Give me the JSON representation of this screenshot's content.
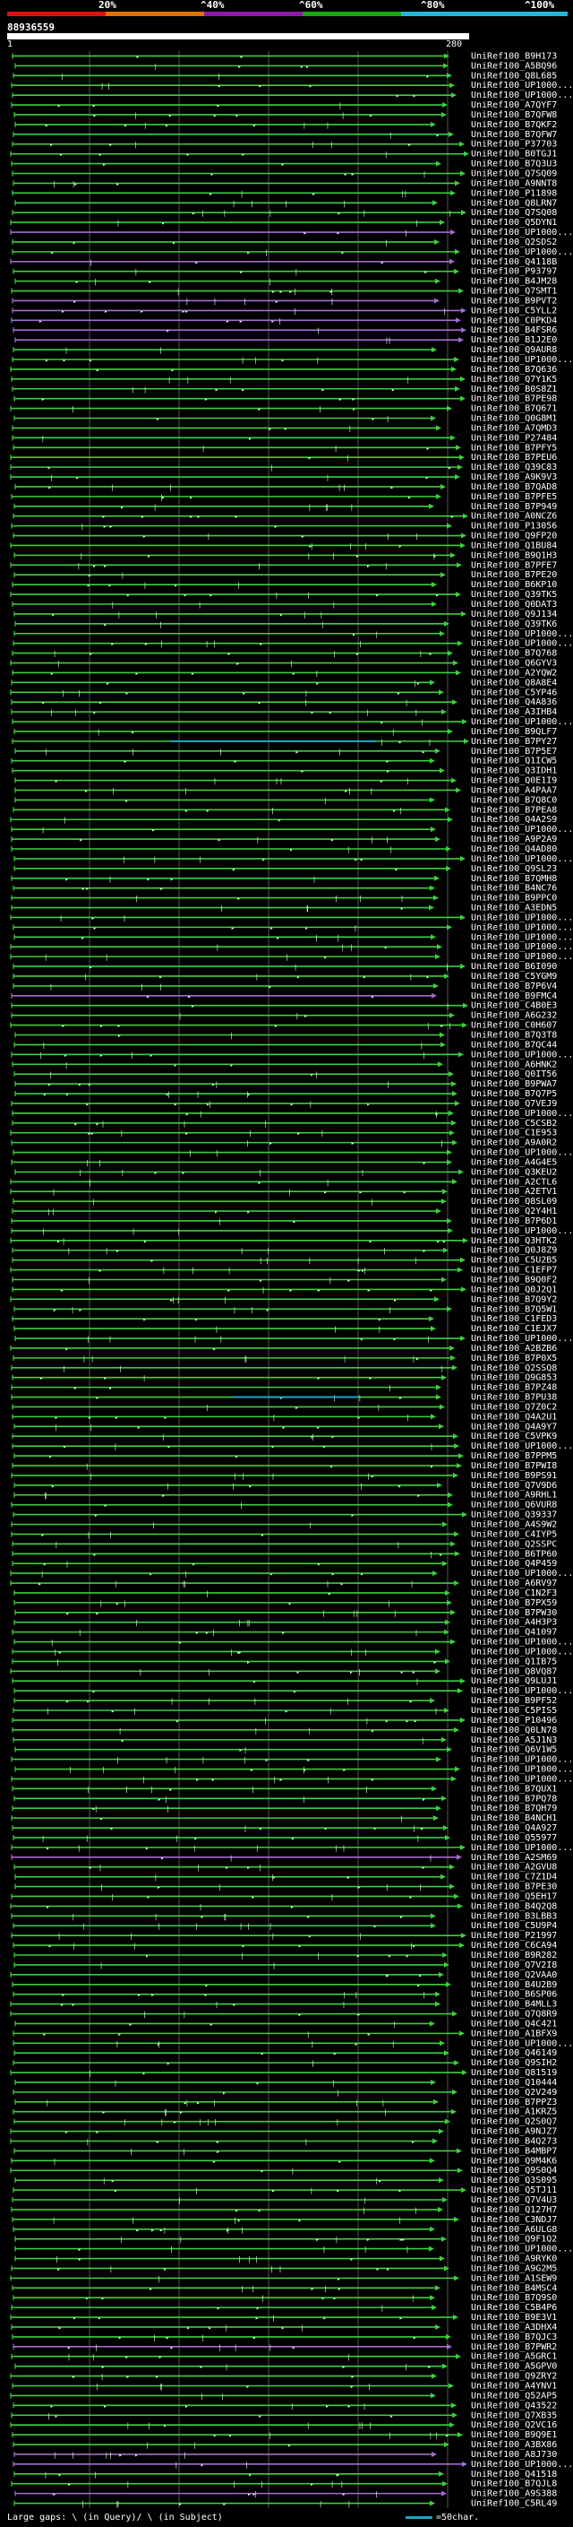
{
  "legend": {
    "labels": [
      "20%",
      "^40%",
      "^60%",
      "^80%",
      "^100%"
    ],
    "colors": [
      "#e01010",
      "#e07000",
      "#8a1aa8",
      "#17a812",
      "#22b8d8"
    ]
  },
  "query": {
    "id": "88936559",
    "start": "1",
    "end": "280"
  },
  "colors": {
    "hit_line": "#3ecf3e",
    "hit_line_mid": "#a46bd0",
    "hit_line_high": "#1ba6c4",
    "text": "#ffffff",
    "background": "#000000",
    "gridline": "#555555"
  },
  "hits": [
    "UniRef100_B9H173",
    "UniRef100_A5BQ96",
    "UniRef100_Q8L685",
    "UniRef100_UP1000...",
    "UniRef100_UP1000...",
    "UniRef100_A7QYF7",
    "UniRef100_B7QFW8",
    "UniRef100_B7QKF2",
    "UniRef100_B7QFW7",
    "UniRef100_P37703",
    "UniRef100_B0TGJ1",
    "UniRef100_B7Q3U3",
    "UniRef100_Q7SQ09",
    "UniRef100_A9NNT8",
    "UniRef100_P11898",
    "UniRef100_Q8LRN7",
    "UniRef100_Q7SQ08",
    "UniRef100_Q5DYN1",
    "UniRef100_UP1000...",
    "UniRef100_Q2SDS2",
    "UniRef100_UP1000...",
    "UniRef100_Q4118B",
    "UniRef100_P93797",
    "UniRef100_B4JM28",
    "UniRef100_Q7SMT1",
    "UniRef100_B9PVT2",
    "UniRef100_C5YLL2",
    "UniRef100_C0PKD4",
    "UniRef100_B4FSR6",
    "UniRef100_B1J2E0",
    "UniRef100_Q9AUR8",
    "UniRef100_UP1000...",
    "UniRef100_B7Q636",
    "UniRef100_Q7Y1K5",
    "UniRef100_B0S8Z1",
    "UniRef100_B7PE98",
    "UniRef100_B7Q671",
    "UniRef100_Q0G8M1",
    "UniRef100_A7QMD3",
    "UniRef100_P27484",
    "UniRef100_B7PFY5",
    "UniRef100_B7PEU6",
    "UniRef100_Q39C83",
    "UniRef100_A9K9V3",
    "UniRef100_B7QAD8",
    "UniRef100_B7PFE5",
    "UniRef100_B7P949",
    "UniRef100_A0NCZ6",
    "UniRef100_P13056",
    "UniRef100_Q9FP20",
    "UniRef100_Q1BU84",
    "UniRef100_B9Q1H3",
    "UniRef100_B7PFE7",
    "UniRef100_B7PE20",
    "UniRef100_B6KP10",
    "UniRef100_Q39TK5",
    "UniRef100_Q0DAT3",
    "UniRef100_Q9J134",
    "UniRef100_Q39TK6",
    "UniRef100_UP1000...",
    "UniRef100_UP1000...",
    "UniRef100_B7Q768",
    "UniRef100_Q6GYV3",
    "UniRef100_A2YQW2",
    "UniRef100_Q8A8E4",
    "UniRef100_C5YP46",
    "UniRef100_Q4A836",
    "UniRef100_A3IHB4",
    "UniRef100_UP1000...",
    "UniRef100_B9QLF7",
    "UniRef100_B7PY27",
    "UniRef100_B7P5E7",
    "UniRef100_Q1ICW5",
    "UniRef100_Q3IDH1",
    "UniRef100_Q0E1I9",
    "UniRef100_A4PAA7",
    "UniRef100_B7Q8C0",
    "UniRef100_B7PEA8",
    "UniRef100_Q4A2S9",
    "UniRef100_UP1000...",
    "UniRef100_A9P2A9",
    "UniRef100_Q4AD80",
    "UniRef100_UP1000...",
    "UniRef100_Q9SL23",
    "UniRef100_B7QMH8",
    "UniRef100_B4NC76",
    "UniRef100_B9PPC0",
    "UniRef100_A3EDN5",
    "UniRef100_UP1000...",
    "UniRef100_UP1000...",
    "UniRef100_UP1000...",
    "UniRef100_UP1000...",
    "UniRef100_UP1000...",
    "UniRef100_B6I090",
    "UniRef100_C5YGM9",
    "UniRef100_B7P6V4",
    "UniRef100_B9FMC4",
    "UniRef100_C4B0E3",
    "UniRef100_A6G232",
    "UniRef100_C0H607",
    "UniRef100_B7Q3T8",
    "UniRef100_B7QC44",
    "UniRef100_UP1000...",
    "UniRef100_A6HNK2",
    "UniRef100_Q0IT56",
    "UniRef100_B9PWA7",
    "UniRef100_B7Q7P5",
    "UniRef100_Q7VEJ9",
    "UniRef100_UP1000...",
    "UniRef100_C5CSB2",
    "UniRef100_C1E953",
    "UniRef100_A9A0R2",
    "UniRef100_UP1000...",
    "UniRef100_A4G4E5",
    "UniRef100_Q3KEU2",
    "UniRef100_A2CTL6",
    "UniRef100_A2ETV1",
    "UniRef100_Q8SL09",
    "UniRef100_Q2Y4H1",
    "UniRef100_B7P6D1",
    "UniRef100_UP1000...",
    "UniRef100_Q3HTK2",
    "UniRef100_Q0J8Z9",
    "UniRef100_C5U2B5",
    "UniRef100_C1EFP7",
    "UniRef100_B9Q0F2",
    "UniRef100_Q0J2Q1",
    "UniRef100_B7Q9Y2",
    "UniRef100_B7Q5W1",
    "UniRef100_C1FED3",
    "UniRef100_C1EJX7",
    "UniRef100_UP1000...",
    "UniRef100_A2BZB6",
    "UniRef100_B7P0X5",
    "UniRef100_Q2SSQ8",
    "UniRef100_Q9G853",
    "UniRef100_B7PZ48",
    "UniRef100_B7PU38",
    "UniRef100_Q7Z0C2",
    "UniRef100_Q4A2U1",
    "UniRef100_Q4A9Y7",
    "UniRef100_C5VPK9",
    "UniRef100_UP1000...",
    "UniRef100_B7PPM5",
    "UniRef100_B7PWI8",
    "UniRef100_B9PS91",
    "UniRef100_Q7V9D6",
    "UniRef100_A9RHL1",
    "UniRef100_Q6VUR8",
    "UniRef100_Q39337",
    "UniRef100_A4S9W2",
    "UniRef100_C4IYP5",
    "UniRef100_Q2SSPC",
    "UniRef100_B6TP60",
    "UniRef100_Q4P459",
    "UniRef100_UP1000...",
    "UniRef100_A6RV97",
    "UniRef100_C1N2F3",
    "UniRef100_B7PX59",
    "UniRef100_B7PW30",
    "UniRef100_A4H3P3",
    "UniRef100_Q41097",
    "UniRef100_UP1000...",
    "UniRef100_UP1000...",
    "UniRef100_Q1IB75",
    "UniRef100_Q8VQ87",
    "UniRef100_Q9LUJ1",
    "UniRef100_UP1000...",
    "UniRef100_B9PF52",
    "UniRef100_C5PIS5",
    "UniRef100_P10496",
    "UniRef100_Q0LN78",
    "UniRef100_A5J1N3",
    "UniRef100_Q6V1W5",
    "UniRef100_UP1000...",
    "UniRef100_UP1000...",
    "UniRef100_UP1000...",
    "UniRef100_B7QUX1",
    "UniRef100_B7PQ78",
    "UniRef100_B7QH79",
    "UniRef100_B4NCH1",
    "UniRef100_Q4A927",
    "UniRef100_Q55977",
    "UniRef100_UP1000...",
    "UniRef100_A2SM69",
    "UniRef100_A2GVU8",
    "UniRef100_C7Z1D4",
    "UniRef100_B7PE30",
    "UniRef100_Q5EH17",
    "UniRef100_B4Q2Q8",
    "UniRef100_B3LBB3",
    "UniRef100_C5U9P4",
    "UniRef100_P21997",
    "UniRef100_C6CA94",
    "UniRef100_B9R282",
    "UniRef100_Q7V2I8",
    "UniRef100_Q2VAA0",
    "UniRef100_B4U2B9",
    "UniRef100_B6SP06",
    "UniRef100_B4MLL3",
    "UniRef100_Q7Q8R9",
    "UniRef100_Q4C421",
    "UniRef100_A1BFX9",
    "UniRef100_UP1000...",
    "UniRef100_Q46149",
    "UniRef100_Q9SIH2",
    "UniRef100_Q81519",
    "UniRef100_Q10444",
    "UniRef100_Q2V249",
    "UniRef100_B7PPZ3",
    "UniRef100_A1KRZ5",
    "UniRef100_Q2S0Q7",
    "UniRef100_A9NJZ7",
    "UniRef100_B4Q273",
    "UniRef100_B4MBP7",
    "UniRef100_Q9M4K6",
    "UniRef100_Q9S0Q4",
    "UniRef100_Q3S095",
    "UniRef100_Q5TJ11",
    "UniRef100_Q7V4U3",
    "UniRef100_Q127H7",
    "UniRef100_C3NDJ7",
    "UniRef100_A6ULG8",
    "UniRef100_Q9F1Q2",
    "UniRef100_UP1000...",
    "UniRef100_A9RYK0",
    "UniRef100_A9G2M5",
    "UniRef100_A1SEW9",
    "UniRef100_B4MSC4",
    "UniRef100_B7Q9S0",
    "UniRef100_C5B4P6",
    "UniRef100_B9E3V1",
    "UniRef100_A3DHX4",
    "UniRef100_B7QJC3",
    "UniRef100_B7PWR2",
    "UniRef100_A5GRC1",
    "UniRef100_A5GPV0",
    "UniRef100_Q9ZRY2",
    "UniRef100_A4YNV1",
    "UniRef100_Q52AP5",
    "UniRef100_Q43522",
    "UniRef100_Q7XB35",
    "UniRef100_Q2VC16",
    "UniRef100_B9Q9E1",
    "UniRef100_A3BX86",
    "UniRef100_A8J730",
    "UniRef100_UP1000...",
    "UniRef100_Q41518",
    "UniRef100_B7QJL8",
    "UniRef100_A9S388",
    "UniRef100_C5RL49"
  ],
  "footer": {
    "gaps_text": "Large gaps: \\ (in Query)/ \\ (in Subject)",
    "scale_text": "=50char."
  }
}
